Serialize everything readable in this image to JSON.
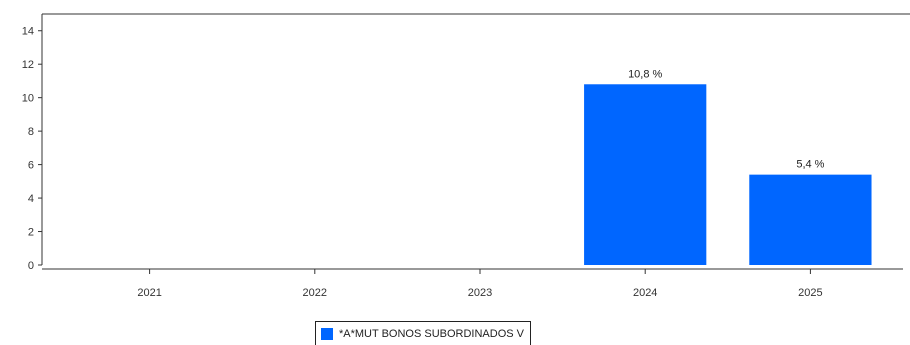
{
  "chart_data": {
    "type": "bar",
    "categories": [
      "2021",
      "2022",
      "2023",
      "2024",
      "2025"
    ],
    "series": [
      {
        "name": "*A*MUT BONOS SUBORDINADOS V",
        "values": [
          null,
          null,
          null,
          10.8,
          5.4
        ],
        "labels": [
          "",
          "",
          "",
          "10,8 %",
          "5,4 %"
        ],
        "color": "#0066ff"
      }
    ],
    "ylim": [
      0,
      15
    ],
    "yticks": [
      0,
      2,
      4,
      6,
      8,
      10,
      12,
      14
    ],
    "grid": false,
    "legend_position": "bottom"
  }
}
